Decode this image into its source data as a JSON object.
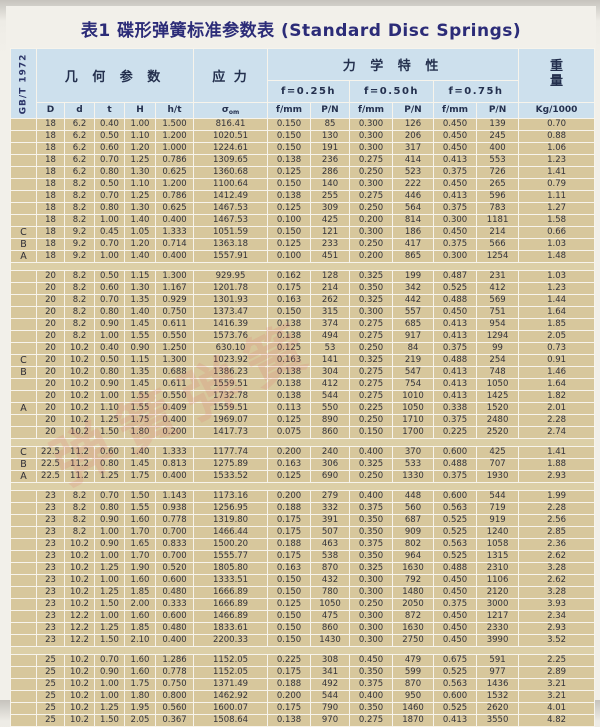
{
  "title": "表1 碟形弹簧标准参数表 (Standard Disc Springs)",
  "standard_label": "GB/T 1972",
  "watermark": {
    "text": "弹簧弹簧"
  },
  "colors": {
    "header_bg": "#cde0ed",
    "row_bg": "#d7c79c",
    "grid": "#f7f4ec",
    "title_text": "#2c2c78",
    "watermark": "#de6c68"
  },
  "table": {
    "geometry_header": "几 何 参 数",
    "stress_header": "应 力",
    "mechanical_header": "力 学 特 性",
    "weight_line1": "重",
    "weight_line2": "量",
    "deflections": [
      "f=0.25h",
      "f=0.50h",
      "f=0.75h"
    ],
    "stress_symbol": "σ",
    "stress_sub": "om",
    "columns": [
      "D",
      "d",
      "t",
      "H",
      "h/t",
      "f/mm",
      "P/N",
      "f/mm",
      "P/N",
      "f/mm",
      "P/N",
      "Kg/1000"
    ],
    "groups": [
      {
        "rows": [
          [
            "",
            "18",
            "6.2",
            "0.40",
            "1.00",
            "1.500",
            "816.41",
            "0.150",
            "85",
            "0.300",
            "126",
            "0.450",
            "139",
            "0.70"
          ],
          [
            "",
            "18",
            "6.2",
            "0.50",
            "1.10",
            "1.200",
            "1020.51",
            "0.150",
            "130",
            "0.300",
            "206",
            "0.450",
            "245",
            "0.88"
          ],
          [
            "",
            "18",
            "6.2",
            "0.60",
            "1.20",
            "1.000",
            "1224.61",
            "0.150",
            "191",
            "0.300",
            "317",
            "0.450",
            "400",
            "1.06"
          ],
          [
            "",
            "18",
            "6.2",
            "0.70",
            "1.25",
            "0.786",
            "1309.65",
            "0.138",
            "236",
            "0.275",
            "414",
            "0.413",
            "553",
            "1.23"
          ],
          [
            "",
            "18",
            "6.2",
            "0.80",
            "1.30",
            "0.625",
            "1360.68",
            "0.125",
            "286",
            "0.250",
            "523",
            "0.375",
            "726",
            "1.41"
          ],
          [
            "",
            "18",
            "8.2",
            "0.50",
            "1.10",
            "1.200",
            "1100.64",
            "0.150",
            "140",
            "0.300",
            "222",
            "0.450",
            "265",
            "0.79"
          ],
          [
            "",
            "18",
            "8.2",
            "0.70",
            "1.25",
            "0.786",
            "1412.49",
            "0.138",
            "255",
            "0.275",
            "446",
            "0.413",
            "596",
            "1.11"
          ],
          [
            "",
            "18",
            "8.2",
            "0.80",
            "1.30",
            "0.625",
            "1467.53",
            "0.125",
            "309",
            "0.250",
            "564",
            "0.375",
            "783",
            "1.27"
          ],
          [
            "",
            "18",
            "8.2",
            "1.00",
            "1.40",
            "0.400",
            "1467.53",
            "0.100",
            "425",
            "0.200",
            "814",
            "0.300",
            "1181",
            "1.58"
          ],
          [
            "C",
            "18",
            "9.2",
            "0.45",
            "1.05",
            "1.333",
            "1051.59",
            "0.150",
            "121",
            "0.300",
            "186",
            "0.450",
            "214",
            "0.66"
          ],
          [
            "B",
            "18",
            "9.2",
            "0.70",
            "1.20",
            "0.714",
            "1363.18",
            "0.125",
            "233",
            "0.250",
            "417",
            "0.375",
            "566",
            "1.03"
          ],
          [
            "A",
            "18",
            "9.2",
            "1.00",
            "1.40",
            "0.400",
            "1557.91",
            "0.100",
            "451",
            "0.200",
            "865",
            "0.300",
            "1254",
            "1.48"
          ]
        ]
      },
      {
        "rows": [
          [
            "",
            "20",
            "8.2",
            "0.50",
            "1.15",
            "1.300",
            "929.95",
            "0.162",
            "128",
            "0.325",
            "199",
            "0.487",
            "231",
            "1.03"
          ],
          [
            "",
            "20",
            "8.2",
            "0.60",
            "1.30",
            "1.167",
            "1201.78",
            "0.175",
            "214",
            "0.350",
            "342",
            "0.525",
            "412",
            "1.23"
          ],
          [
            "",
            "20",
            "8.2",
            "0.70",
            "1.35",
            "0.929",
            "1301.93",
            "0.163",
            "262",
            "0.325",
            "442",
            "0.488",
            "569",
            "1.44"
          ],
          [
            "",
            "20",
            "8.2",
            "0.80",
            "1.40",
            "0.750",
            "1373.47",
            "0.150",
            "315",
            "0.300",
            "557",
            "0.450",
            "751",
            "1.64"
          ],
          [
            "",
            "20",
            "8.2",
            "0.90",
            "1.45",
            "0.611",
            "1416.39",
            "0.138",
            "374",
            "0.275",
            "685",
            "0.413",
            "954",
            "1.85"
          ],
          [
            "",
            "20",
            "8.2",
            "1.00",
            "1.55",
            "0.550",
            "1573.76",
            "0.138",
            "494",
            "0.275",
            "917",
            "0.413",
            "1294",
            "2.05"
          ],
          [
            "",
            "20",
            "10.2",
            "0.40",
            "0.90",
            "1.250",
            "630.10",
            "0.125",
            "53",
            "0.250",
            "84",
            "0.375",
            "99",
            "0.73"
          ],
          [
            "C",
            "20",
            "10.2",
            "0.50",
            "1.15",
            "1.300",
            "1023.92",
            "0.163",
            "141",
            "0.325",
            "219",
            "0.488",
            "254",
            "0.91"
          ],
          [
            "B",
            "20",
            "10.2",
            "0.80",
            "1.35",
            "0.688",
            "1386.23",
            "0.138",
            "304",
            "0.275",
            "547",
            "0.413",
            "748",
            "1.46"
          ],
          [
            "",
            "20",
            "10.2",
            "0.90",
            "1.45",
            "0.611",
            "1559.51",
            "0.138",
            "412",
            "0.275",
            "754",
            "0.413",
            "1050",
            "1.64"
          ],
          [
            "",
            "20",
            "10.2",
            "1.00",
            "1.55",
            "0.550",
            "1732.78",
            "0.138",
            "544",
            "0.275",
            "1010",
            "0.413",
            "1425",
            "1.82"
          ],
          [
            "A",
            "20",
            "10.2",
            "1.10",
            "1.55",
            "0.409",
            "1559.51",
            "0.113",
            "550",
            "0.225",
            "1050",
            "0.338",
            "1520",
            "2.01"
          ],
          [
            "",
            "20",
            "10.2",
            "1.25",
            "1.75",
            "0.400",
            "1969.07",
            "0.125",
            "890",
            "0.250",
            "1710",
            "0.375",
            "2480",
            "2.28"
          ],
          [
            "",
            "20",
            "10.2",
            "1.50",
            "1.80",
            "0.200",
            "1417.73",
            "0.075",
            "860",
            "0.150",
            "1700",
            "0.225",
            "2520",
            "2.74"
          ]
        ]
      },
      {
        "rows": [
          [
            "C",
            "22.5",
            "11.2",
            "0.60",
            "1.40",
            "1.333",
            "1177.74",
            "0.200",
            "240",
            "0.400",
            "370",
            "0.600",
            "425",
            "1.41"
          ],
          [
            "B",
            "22.5",
            "11.2",
            "0.80",
            "1.45",
            "0.813",
            "1275.89",
            "0.163",
            "306",
            "0.325",
            "533",
            "0.488",
            "707",
            "1.88"
          ],
          [
            "A",
            "22.5",
            "11.2",
            "1.25",
            "1.75",
            "0.400",
            "1533.52",
            "0.125",
            "690",
            "0.250",
            "1330",
            "0.375",
            "1930",
            "2.93"
          ]
        ]
      },
      {
        "rows": [
          [
            "",
            "23",
            "8.2",
            "0.70",
            "1.50",
            "1.143",
            "1173.16",
            "0.200",
            "279",
            "0.400",
            "448",
            "0.600",
            "544",
            "1.99"
          ],
          [
            "",
            "23",
            "8.2",
            "0.80",
            "1.55",
            "0.938",
            "1256.95",
            "0.188",
            "332",
            "0.375",
            "560",
            "0.563",
            "719",
            "2.28"
          ],
          [
            "",
            "23",
            "8.2",
            "0.90",
            "1.60",
            "0.778",
            "1319.80",
            "0.175",
            "391",
            "0.350",
            "687",
            "0.525",
            "919",
            "2.56"
          ],
          [
            "",
            "23",
            "8.2",
            "1.00",
            "1.70",
            "0.700",
            "1466.44",
            "0.175",
            "507",
            "0.350",
            "909",
            "0.525",
            "1240",
            "2.85"
          ],
          [
            "",
            "23",
            "10.2",
            "0.90",
            "1.65",
            "0.833",
            "1500.20",
            "0.188",
            "463",
            "0.375",
            "802",
            "0.563",
            "1058",
            "2.36"
          ],
          [
            "",
            "23",
            "10.2",
            "1.00",
            "1.70",
            "0.700",
            "1555.77",
            "0.175",
            "538",
            "0.350",
            "964",
            "0.525",
            "1315",
            "2.62"
          ],
          [
            "",
            "23",
            "10.2",
            "1.25",
            "1.90",
            "0.520",
            "1805.80",
            "0.163",
            "870",
            "0.325",
            "1630",
            "0.488",
            "2310",
            "3.28"
          ],
          [
            "",
            "23",
            "10.2",
            "1.00",
            "1.60",
            "0.600",
            "1333.51",
            "0.150",
            "432",
            "0.300",
            "792",
            "0.450",
            "1106",
            "2.62"
          ],
          [
            "",
            "23",
            "10.2",
            "1.25",
            "1.85",
            "0.480",
            "1666.89",
            "0.150",
            "780",
            "0.300",
            "1480",
            "0.450",
            "2120",
            "3.28"
          ],
          [
            "",
            "23",
            "10.2",
            "1.50",
            "2.00",
            "0.333",
            "1666.89",
            "0.125",
            "1050",
            "0.250",
            "2050",
            "0.375",
            "3000",
            "3.93"
          ],
          [
            "",
            "23",
            "12.2",
            "1.00",
            "1.60",
            "0.600",
            "1466.89",
            "0.150",
            "475",
            "0.300",
            "872",
            "0.450",
            "1217",
            "2.34"
          ],
          [
            "",
            "23",
            "12.2",
            "1.25",
            "1.85",
            "0.480",
            "1833.61",
            "0.150",
            "860",
            "0.300",
            "1630",
            "0.450",
            "2330",
            "2.93"
          ],
          [
            "",
            "23",
            "12.2",
            "1.50",
            "2.10",
            "0.400",
            "2200.33",
            "0.150",
            "1430",
            "0.300",
            "2750",
            "0.450",
            "3990",
            "3.52"
          ]
        ]
      },
      {
        "rows": [
          [
            "",
            "25",
            "10.2",
            "0.70",
            "1.60",
            "1.286",
            "1152.05",
            "0.225",
            "308",
            "0.450",
            "479",
            "0.675",
            "591",
            "2.25"
          ],
          [
            "",
            "25",
            "10.2",
            "0.90",
            "1.60",
            "0.778",
            "1152.05",
            "0.175",
            "341",
            "0.350",
            "599",
            "0.525",
            "977",
            "2.89"
          ],
          [
            "",
            "25",
            "10.2",
            "1.00",
            "1.75",
            "0.750",
            "1371.49",
            "0.188",
            "492",
            "0.375",
            "870",
            "0.563",
            "1436",
            "3.21"
          ],
          [
            "",
            "25",
            "10.2",
            "1.00",
            "1.80",
            "0.800",
            "1462.92",
            "0.200",
            "544",
            "0.400",
            "950",
            "0.600",
            "1532",
            "3.21"
          ],
          [
            "",
            "25",
            "10.2",
            "1.25",
            "1.95",
            "0.560",
            "1600.07",
            "0.175",
            "790",
            "0.350",
            "1460",
            "0.525",
            "2620",
            "4.01"
          ],
          [
            "",
            "25",
            "10.2",
            "1.50",
            "2.05",
            "0.367",
            "1508.64",
            "0.138",
            "970",
            "0.275",
            "1870",
            "0.413",
            "3550",
            "4.82"
          ]
        ]
      }
    ]
  }
}
